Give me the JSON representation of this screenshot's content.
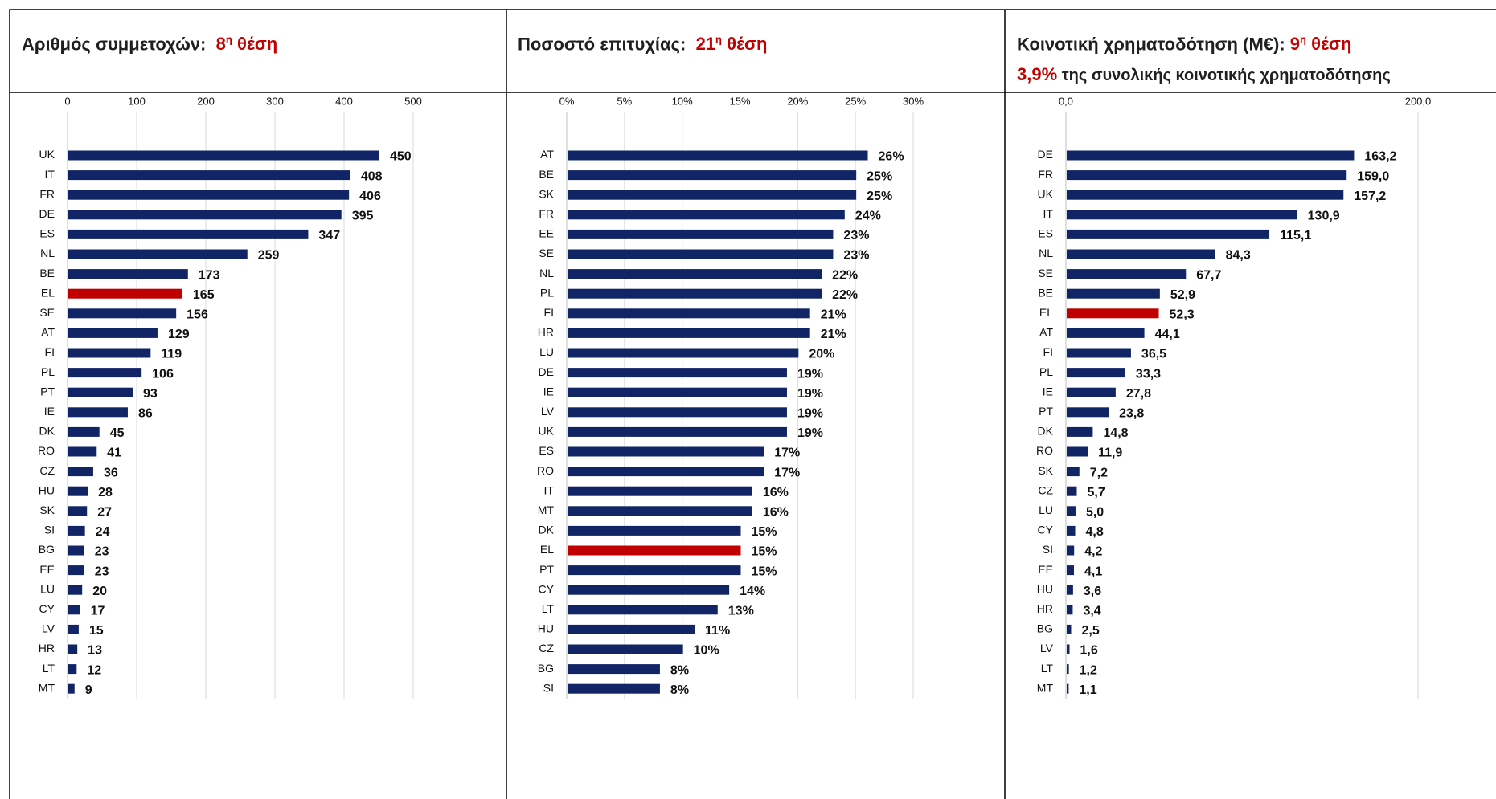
{
  "chart_data": [
    {
      "type": "barh",
      "title": "Αριθμός συμμετοχών:",
      "rank_number": "8",
      "rank_suffix": "η",
      "rank_word": "θέση",
      "categories": [
        "UK",
        "IT",
        "FR",
        "DE",
        "ES",
        "NL",
        "BE",
        "EL",
        "SE",
        "AT",
        "FI",
        "PL",
        "PT",
        "IE",
        "DK",
        "RO",
        "CZ",
        "HU",
        "SK",
        "SI",
        "BG",
        "EE",
        "LU",
        "CY",
        "LV",
        "HR",
        "LT",
        "MT"
      ],
      "values": [
        450,
        408,
        406,
        395,
        347,
        259,
        173,
        165,
        156,
        129,
        119,
        106,
        93,
        86,
        45,
        41,
        36,
        28,
        27,
        24,
        23,
        23,
        20,
        17,
        15,
        13,
        12,
        9
      ],
      "colors": [
        "#112466",
        "#112466",
        "#112466",
        "#112466",
        "#112466",
        "#112466",
        "#112466",
        "#c00000",
        "#112466",
        "#112466",
        "#112466",
        "#112466",
        "#112466",
        "#112466",
        "#112466",
        "#112466",
        "#112466",
        "#112466",
        "#112466",
        "#112466",
        "#112466",
        "#112466",
        "#112466",
        "#112466",
        "#112466",
        "#112466",
        "#112466",
        "#112466"
      ],
      "xlim": [
        0,
        500
      ],
      "xticks": [
        0,
        100,
        200,
        300,
        400,
        500
      ],
      "grid": true
    },
    {
      "type": "barh",
      "title": "Ποσοστό επιτυχίας:",
      "rank_number": "21",
      "rank_suffix": "η",
      "rank_word": "θέση",
      "categories": [
        "AT",
        "BE",
        "SK",
        "FR",
        "EE",
        "SE",
        "NL",
        "PL",
        "FI",
        "HR",
        "LU",
        "DE",
        "IE",
        "LV",
        "UK",
        "ES",
        "RO",
        "IT",
        "MT",
        "DK",
        "EL",
        "PT",
        "CY",
        "LT",
        "HU",
        "CZ",
        "BG",
        "SI"
      ],
      "values": [
        26,
        25,
        25,
        24,
        23,
        23,
        22,
        22,
        21,
        21,
        20,
        19,
        19,
        19,
        19,
        17,
        17,
        16,
        16,
        15,
        15,
        15,
        14,
        13,
        11,
        10,
        8,
        8
      ],
      "value_labels": [
        "26%",
        "25%",
        "25%",
        "24%",
        "23%",
        "23%",
        "22%",
        "22%",
        "21%",
        "21%",
        "20%",
        "19%",
        "19%",
        "19%",
        "19%",
        "17%",
        "17%",
        "16%",
        "16%",
        "15%",
        "15%",
        "15%",
        "14%",
        "13%",
        "11%",
        "10%",
        "8%",
        "8%"
      ],
      "colors": [
        "#112466",
        "#112466",
        "#112466",
        "#112466",
        "#112466",
        "#112466",
        "#112466",
        "#112466",
        "#112466",
        "#112466",
        "#112466",
        "#112466",
        "#112466",
        "#112466",
        "#112466",
        "#112466",
        "#112466",
        "#112466",
        "#112466",
        "#112466",
        "#c00000",
        "#112466",
        "#112466",
        "#112466",
        "#112466",
        "#112466",
        "#112466",
        "#112466"
      ],
      "xlim": [
        0,
        30
      ],
      "xticks": [
        {
          "value": 0,
          "label": "0%"
        },
        {
          "value": 5,
          "label": "5%"
        },
        {
          "value": 10,
          "label": "10%"
        },
        {
          "value": 15,
          "label": "15%"
        },
        {
          "value": 20,
          "label": "20%"
        },
        {
          "value": 25,
          "label": "25%"
        },
        {
          "value": 30,
          "label": "30%"
        }
      ],
      "grid": true
    },
    {
      "type": "barh",
      "title": "Κοινοτική χρηματοδότηση (Μ€):",
      "rank_number": "9",
      "rank_suffix": "η",
      "rank_word": "θέση",
      "subtitle_highlight": "3,9%",
      "subtitle": "της συνολικής κοινοτικής χρηματοδότησης",
      "categories": [
        "DE",
        "FR",
        "UK",
        "IT",
        "ES",
        "NL",
        "SE",
        "BE",
        "EL",
        "AT",
        "FI",
        "PL",
        "IE",
        "PT",
        "DK",
        "RO",
        "SK",
        "CZ",
        "LU",
        "CY",
        "SI",
        "EE",
        "HU",
        "HR",
        "BG",
        "LV",
        "LT",
        "MT"
      ],
      "values": [
        163.2,
        159.0,
        157.2,
        130.9,
        115.1,
        84.3,
        67.7,
        52.9,
        52.3,
        44.1,
        36.5,
        33.3,
        27.8,
        23.8,
        14.8,
        11.9,
        7.2,
        5.7,
        5.0,
        4.8,
        4.2,
        4.1,
        3.6,
        3.4,
        2.5,
        1.6,
        1.2,
        1.1
      ],
      "value_labels": [
        "163,2",
        "159,0",
        "157,2",
        "130,9",
        "115,1",
        "84,3",
        "67,7",
        "52,9",
        "52,3",
        "44,1",
        "36,5",
        "33,3",
        "27,8",
        "23,8",
        "14,8",
        "11,9",
        "7,2",
        "5,7",
        "5,0",
        "4,8",
        "4,2",
        "4,1",
        "3,6",
        "3,4",
        "2,5",
        "1,6",
        "1,2",
        "1,1"
      ],
      "colors": [
        "#112466",
        "#112466",
        "#112466",
        "#112466",
        "#112466",
        "#112466",
        "#112466",
        "#112466",
        "#c00000",
        "#112466",
        "#112466",
        "#112466",
        "#112466",
        "#112466",
        "#112466",
        "#112466",
        "#112466",
        "#112466",
        "#112466",
        "#112466",
        "#112466",
        "#112466",
        "#112466",
        "#112466",
        "#112466",
        "#112466",
        "#112466",
        "#112466"
      ],
      "xlim": [
        0,
        200
      ],
      "xticks": [
        {
          "value": 0,
          "label": "0,0"
        },
        {
          "value": 200,
          "label": "200,0"
        }
      ],
      "grid": true
    }
  ]
}
